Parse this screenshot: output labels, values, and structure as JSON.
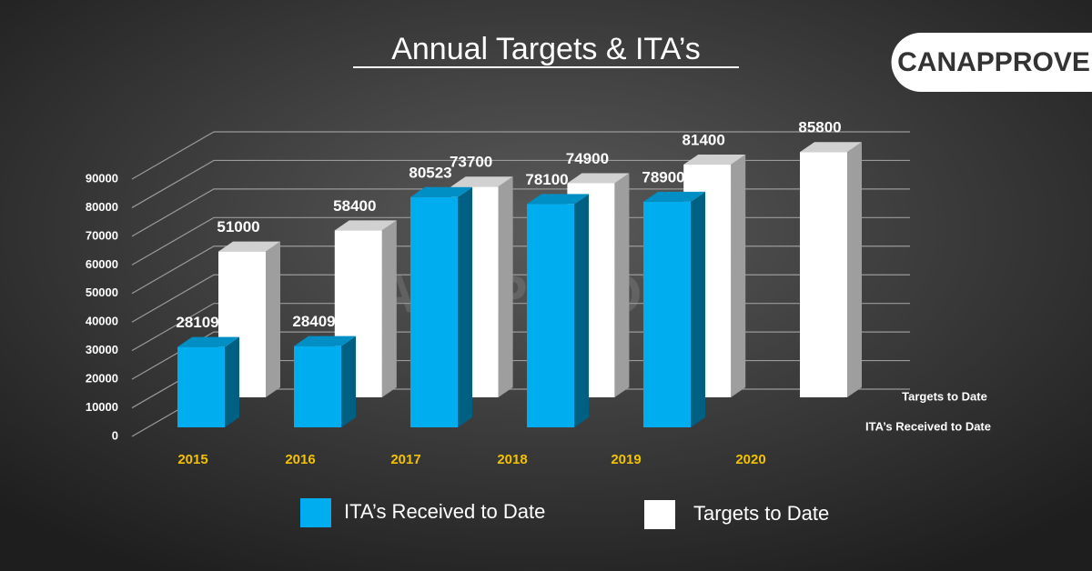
{
  "logo": "CANAPPROVE",
  "chart_data": {
    "type": "bar3d",
    "title": "Annual Targets & ITA’s",
    "categories": [
      "2015",
      "2016",
      "2017",
      "2018",
      "2019",
      "2020"
    ],
    "series": [
      {
        "name": "ITA’s Received to Date",
        "color": "#00aeef",
        "values": [
          28109,
          28409,
          80523,
          78100,
          78900,
          null
        ]
      },
      {
        "name": "Targets to Date",
        "color": "#ffffff",
        "values": [
          51000,
          58400,
          73700,
          74900,
          81400,
          85800
        ]
      }
    ],
    "ylim": [
      0,
      90000
    ],
    "yticks": [
      0,
      10000,
      20000,
      30000,
      40000,
      50000,
      60000,
      70000,
      80000,
      90000
    ],
    "grid": true
  }
}
